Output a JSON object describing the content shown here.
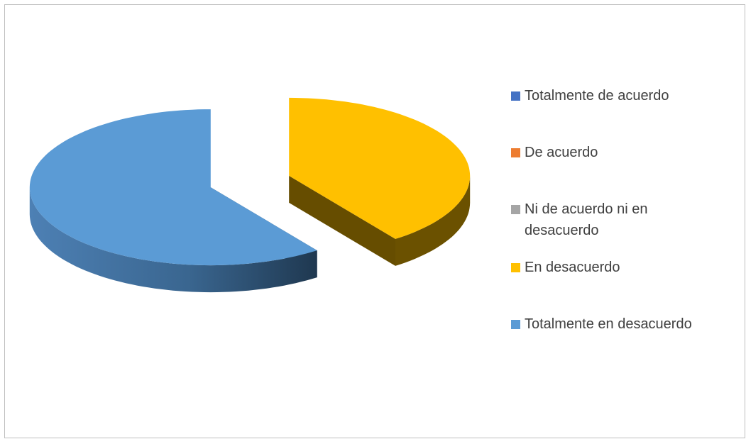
{
  "chart_data": {
    "type": "pie3d",
    "categories": [
      "Totalmente de acuerdo",
      "De acuerdo",
      "Ni de acuerdo ni en desacuerdo",
      "En desacuerdo",
      "Totalmente en desacuerdo"
    ],
    "values": [
      0,
      0,
      0,
      40,
      60
    ],
    "colors": [
      "#4472c4",
      "#ed7d31",
      "#a5a5a5",
      "#ffc000",
      "#5b9bd5"
    ],
    "legend": "right"
  }
}
